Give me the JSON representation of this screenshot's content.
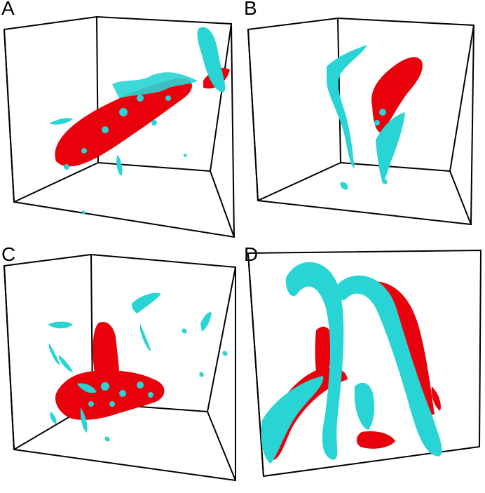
{
  "figure": {
    "panels": [
      {
        "label": "A"
      },
      {
        "label": "B"
      },
      {
        "label": "C"
      },
      {
        "label": "D"
      }
    ],
    "colors": {
      "positive_isosurface": "#e8000b",
      "negative_isosurface": "#28d4d4",
      "box_edges": "#000000",
      "background": "#ffffff"
    }
  }
}
